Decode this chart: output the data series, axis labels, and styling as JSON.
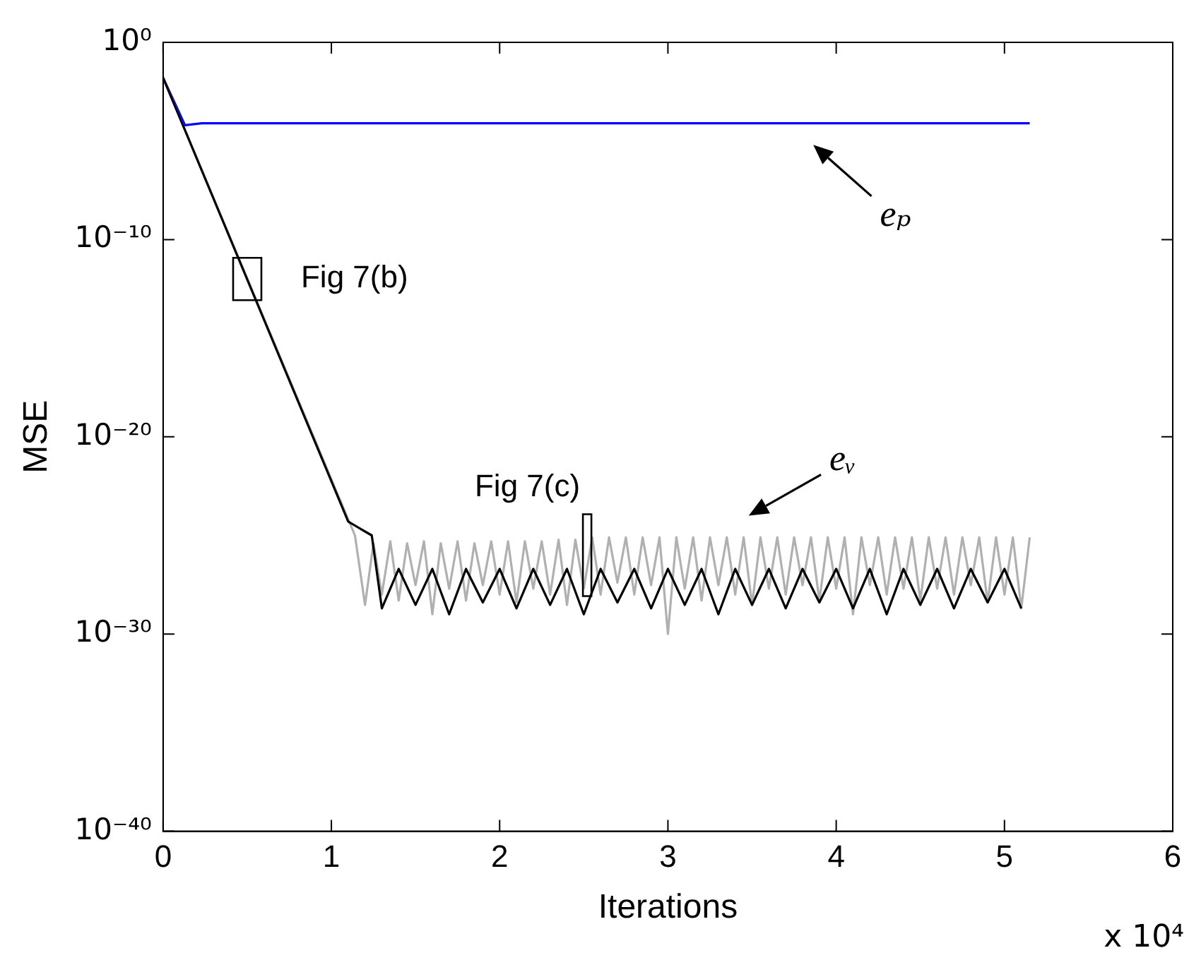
{
  "chart_data": {
    "type": "line",
    "xlabel": "Iterations",
    "ylabel": "MSE",
    "log": "y",
    "xlim": [
      0,
      6
    ],
    "xticks": [
      0,
      1,
      2,
      3,
      4,
      5,
      6
    ],
    "ylim": [
      1e-40,
      1
    ],
    "yticks": [
      {
        "value": 1e-40,
        "label": "10⁻⁴⁰"
      },
      {
        "value": 1e-30,
        "label": "10⁻³⁰"
      },
      {
        "value": 1e-20,
        "label": "10⁻²⁰"
      },
      {
        "value": 1e-10,
        "label": "10⁻¹⁰"
      },
      {
        "value": 1,
        "label": "10⁰"
      }
    ],
    "series": [
      {
        "color": "#000000",
        "x": [
          0,
          1.1,
          1.24,
          1.3,
          1.4,
          1.5,
          1.6,
          1.7,
          1.8,
          1.9,
          2,
          2.1,
          2.2,
          2.3,
          2.4,
          2.5,
          2.6,
          2.7,
          2.8,
          2.9,
          3,
          3.1,
          3.2,
          3.3,
          3.4,
          3.5,
          3.6,
          3.7,
          3.8,
          3.9,
          4,
          4.1,
          4.2,
          4.3,
          4.4,
          4.5,
          4.6,
          4.7,
          4.8,
          4.9,
          5,
          5.1
        ],
        "values": [
          0.016,
          5e-25,
          1e-25,
          2e-29,
          2e-27,
          3e-29,
          2e-27,
          1e-29,
          2e-27,
          4e-29,
          2e-27,
          2e-29,
          2e-27,
          3e-29,
          2e-27,
          1e-29,
          2e-27,
          4e-29,
          2e-27,
          2e-29,
          2e-27,
          3e-29,
          2e-27,
          1e-29,
          2e-27,
          3e-29,
          2e-27,
          2e-29,
          2e-27,
          4e-29,
          2e-27,
          2e-29,
          2e-27,
          1e-29,
          2e-27,
          3e-29,
          2e-27,
          2e-29,
          2e-27,
          4e-29,
          2e-27,
          2e-29
        ]
      },
      {
        "color": "#b0b0b0",
        "x": [
          0,
          1.14,
          1.2,
          1.25,
          1.3,
          1.35,
          1.4,
          1.45,
          1.5,
          1.55,
          1.6,
          1.65,
          1.7,
          1.75,
          1.8,
          1.85,
          1.9,
          1.95,
          2,
          2.05,
          2.1,
          2.15,
          2.2,
          2.25,
          2.3,
          2.35,
          2.4,
          2.45,
          2.5,
          2.55,
          2.6,
          2.65,
          2.7,
          2.75,
          2.8,
          2.85,
          2.9,
          2.95,
          3,
          3.05,
          3.1,
          3.15,
          3.2,
          3.25,
          3.3,
          3.35,
          3.4,
          3.45,
          3.5,
          3.55,
          3.6,
          3.65,
          3.7,
          3.75,
          3.8,
          3.85,
          3.9,
          3.95,
          4,
          4.05,
          4.1,
          4.15,
          4.2,
          4.25,
          4.3,
          4.35,
          4.4,
          4.45,
          4.5,
          4.55,
          4.6,
          4.65,
          4.7,
          4.75,
          4.8,
          4.85,
          4.9,
          4.95,
          5,
          5.05,
          5.1,
          5.15
        ],
        "values": [
          0.016,
          1e-25,
          3e-29,
          4e-26,
          1e-28,
          5e-26,
          5e-29,
          4e-26,
          3e-28,
          5e-26,
          1e-29,
          4e-26,
          2e-28,
          5e-26,
          5e-29,
          4e-26,
          3e-28,
          5e-26,
          1e-28,
          5e-26,
          4e-29,
          5e-26,
          2e-28,
          5e-26,
          1e-28,
          6e-26,
          3e-29,
          6e-26,
          2e-28,
          8e-26,
          1e-28,
          8e-26,
          4e-28,
          8e-26,
          1e-28,
          8e-26,
          3e-28,
          8e-26,
          1e-30,
          8e-26,
          2e-28,
          8e-26,
          5e-29,
          8e-26,
          3e-28,
          8e-26,
          1e-28,
          8e-26,
          3e-29,
          8e-26,
          2e-28,
          8e-26,
          1e-28,
          8e-26,
          3e-28,
          8e-26,
          5e-29,
          8e-26,
          2e-28,
          8e-26,
          1e-29,
          8e-26,
          3e-28,
          8e-26,
          1e-28,
          8e-26,
          2e-28,
          8e-26,
          5e-29,
          8e-26,
          2e-28,
          8e-26,
          1e-28,
          8e-26,
          3e-28,
          8e-26,
          4e-29,
          8e-26,
          1e-28,
          8e-26,
          2e-29,
          8e-26
        ]
      },
      {
        "color": "#0000ff",
        "x": [
          0,
          0.13,
          0.23,
          5.15
        ],
        "values": [
          0.016,
          6.3e-05,
          7.9e-05,
          7.9e-05
        ]
      }
    ],
    "annotations": [
      {
        "text": "Fig 7(b)",
        "x": 0.5,
        "y": 1e-12
      },
      {
        "text": "Fig 7(c)",
        "x": 2.52,
        "y": 1e-26
      },
      "eₚ",
      "eᵥ",
      "x 10⁴"
    ]
  }
}
